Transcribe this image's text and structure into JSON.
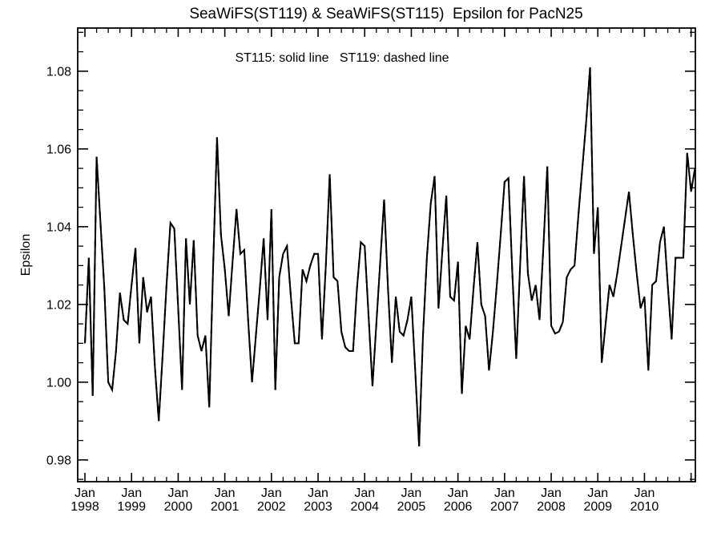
{
  "header": {
    "title": "SeaWiFS(ST119) & SeaWiFS(ST115)  Epsilon for PacN25"
  },
  "annotation": "ST115: solid line   ST119: dashed line",
  "chart_data": {
    "type": "line",
    "title": "SeaWiFS(ST119) & SeaWiFS(ST115)  Epsilon for PacN25",
    "annotation": "ST115: solid line   ST119: dashed line",
    "xlabel": "",
    "ylabel": "Epsilon",
    "line_color": "#000000",
    "background_color": "#ffffff",
    "grid": false,
    "legend_position": "none",
    "ylim": [
      0.9744,
      1.0911
    ],
    "xlim_months": [
      -1.86,
      157.1
    ],
    "y_ticks": [
      {
        "v": 0.98,
        "label": "0.98"
      },
      {
        "v": 1.0,
        "label": "1.00"
      },
      {
        "v": 1.02,
        "label": "1.02"
      },
      {
        "v": 1.04,
        "label": "1.04"
      },
      {
        "v": 1.06,
        "label": "1.06"
      },
      {
        "v": 1.08,
        "label": "1.08"
      }
    ],
    "y_minor_step": 0.005,
    "x_minor_step_months": 3,
    "x_ticks": [
      {
        "m": 0,
        "line1": "Jan",
        "line2": "1998"
      },
      {
        "m": 12,
        "line1": "Jan",
        "line2": "1999"
      },
      {
        "m": 24,
        "line1": "Jan",
        "line2": "2000"
      },
      {
        "m": 36,
        "line1": "Jan",
        "line2": "2001"
      },
      {
        "m": 48,
        "line1": "Jan",
        "line2": "2002"
      },
      {
        "m": 60,
        "line1": "Jan",
        "line2": "2003"
      },
      {
        "m": 72,
        "line1": "Jan",
        "line2": "2004"
      },
      {
        "m": 84,
        "line1": "Jan",
        "line2": "2005"
      },
      {
        "m": 96,
        "line1": "Jan",
        "line2": "2006"
      },
      {
        "m": 108,
        "line1": "Jan",
        "line2": "2007"
      },
      {
        "m": 120,
        "line1": "Jan",
        "line2": "2008"
      },
      {
        "m": 132,
        "line1": "Jan",
        "line2": "2009"
      },
      {
        "m": 144,
        "line1": "Jan",
        "line2": "2010"
      },
      {
        "m": 156,
        "line1": "",
        "line2": ""
      }
    ],
    "x_start_month": "Jan 1998",
    "series": [
      {
        "name": "ST115",
        "style": "solid",
        "values": [
          1.01,
          1.032,
          0.9965,
          1.058,
          1.041,
          1.024,
          1.0,
          0.998,
          1.008,
          1.023,
          1.016,
          1.015,
          1.025,
          1.0345,
          1.01,
          1.027,
          1.018,
          1.022,
          1.004,
          0.99,
          1.007,
          1.025,
          1.041,
          1.0395,
          1.019,
          0.998,
          1.037,
          1.02,
          1.0365,
          1.012,
          1.008,
          1.012,
          0.9935,
          1.03,
          1.063,
          1.038,
          1.029,
          1.017,
          1.031,
          1.0445,
          1.033,
          1.034,
          1.016,
          1.0,
          1.012,
          1.024,
          1.037,
          1.016,
          1.0445,
          0.998,
          1.027,
          1.033,
          1.035,
          1.022,
          1.01,
          1.01,
          1.029,
          1.026,
          1.03,
          1.033,
          1.033,
          1.011,
          1.03,
          1.0535,
          1.027,
          1.026,
          1.013,
          1.009,
          1.008,
          1.008,
          1.024,
          1.036,
          1.035,
          1.017,
          0.999,
          1.015,
          1.031,
          1.047,
          1.024,
          1.005,
          1.022,
          1.013,
          1.012,
          1.016,
          1.022,
          1.003,
          0.9835,
          1.012,
          1.032,
          1.046,
          1.053,
          1.019,
          1.034,
          1.048,
          1.022,
          1.021,
          1.031,
          0.997,
          1.0145,
          1.011,
          1.024,
          1.036,
          1.02,
          1.017,
          1.003,
          1.013,
          1.025,
          1.038,
          1.0515,
          1.0525,
          1.028,
          1.006,
          1.03,
          1.053,
          1.028,
          1.021,
          1.025,
          1.016,
          1.035,
          1.0555,
          1.0145,
          1.0125,
          1.013,
          1.0155,
          1.027,
          1.029,
          1.03,
          1.043,
          1.055,
          1.067,
          1.081,
          1.033,
          1.045,
          1.005,
          1.015,
          1.025,
          1.022,
          1.028,
          1.035,
          1.042,
          1.049,
          1.038,
          1.028,
          1.019,
          1.022,
          1.003,
          1.025,
          1.026,
          1.036,
          1.04,
          1.025,
          1.011,
          1.032,
          1.032,
          1.032,
          1.059,
          1.049,
          1.055
        ]
      },
      {
        "name": "ST119",
        "style": "dashed",
        "values": [
          1.01,
          1.032,
          0.9965,
          1.058,
          1.041,
          1.024,
          1.0,
          0.998,
          1.008,
          1.023,
          1.016,
          1.015,
          1.025,
          1.0345,
          1.01,
          1.027,
          1.018,
          1.022,
          1.004,
          0.99,
          1.007,
          1.025,
          1.041,
          1.0395,
          1.019,
          0.998,
          1.037,
          1.02,
          1.0365,
          1.012,
          1.008,
          1.012,
          0.9935,
          1.03,
          1.063,
          1.038,
          1.029,
          1.017,
          1.031,
          1.0445,
          1.033,
          1.034,
          1.016,
          1.0,
          1.012,
          1.024,
          1.037,
          1.016,
          1.0445,
          0.998,
          1.027,
          1.033,
          1.035,
          1.022,
          1.01,
          1.01,
          1.029,
          1.026,
          1.03,
          1.033,
          1.033,
          1.011,
          1.03,
          1.0535,
          1.027,
          1.026,
          1.013,
          1.009,
          1.008,
          1.008,
          1.024,
          1.036,
          1.035,
          1.017,
          0.999,
          1.015,
          1.031,
          1.047,
          1.024,
          1.005,
          1.022,
          1.013,
          1.012,
          1.016,
          1.022,
          1.003,
          0.9835,
          1.012,
          1.032,
          1.046,
          1.053,
          1.019,
          1.034,
          1.048,
          1.022,
          1.021,
          1.031,
          0.997,
          1.0145,
          1.011,
          1.024,
          1.036,
          1.02,
          1.017,
          1.003,
          1.013,
          1.025,
          1.038,
          1.0515,
          1.0525,
          1.028,
          1.006,
          1.03,
          1.053,
          1.028,
          1.021,
          1.025,
          1.016,
          1.035,
          1.0555,
          1.0145,
          1.0125,
          1.013,
          1.0155,
          1.027,
          1.029,
          1.03,
          1.043,
          1.055,
          1.067,
          1.081,
          1.033,
          1.045,
          1.005,
          1.015,
          1.025,
          1.022,
          1.028,
          1.035,
          1.042,
          1.049,
          1.038,
          1.028,
          1.019,
          1.022,
          1.003,
          1.025,
          1.026,
          1.036,
          1.04,
          1.025,
          1.011,
          1.032,
          1.032,
          1.032,
          1.059,
          1.049,
          1.055
        ]
      }
    ]
  }
}
